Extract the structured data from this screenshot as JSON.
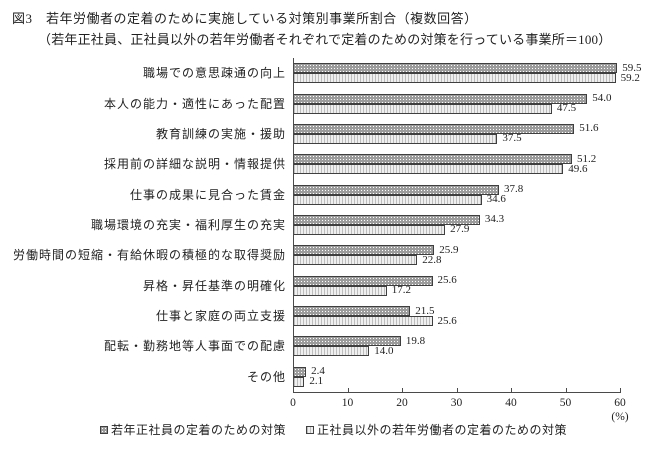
{
  "figure": {
    "title": "図3　若年労働者の定着のために実施している対策別事業所割合（複数回答）",
    "subtitle": "（若年正社員、正社員以外の若年労働者それぞれで定着のための対策を行っている事業所＝100）"
  },
  "chart_data": {
    "type": "bar",
    "orientation": "horizontal",
    "title": "若年労働者の定着のために実施している対策別事業所割合（複数回答）",
    "categories": [
      "職場での意思疎通の向上",
      "本人の能力・適性にあった配置",
      "教育訓練の実施・援助",
      "採用前の詳細な説明・情報提供",
      "仕事の成果に見合った賃金",
      "職場環境の充実・福利厚生の充実",
      "労働時間の短縮・有給休暇の積極的な取得奨励",
      "昇格・昇任基準の明確化",
      "仕事と家庭の両立支援",
      "配転・勤務地等人事面での配慮",
      "その他"
    ],
    "series": [
      {
        "name": "若年正社員の定着のための対策",
        "values": [
          59.5,
          54.0,
          51.6,
          51.2,
          37.8,
          34.3,
          25.9,
          25.6,
          21.5,
          19.8,
          2.4
        ],
        "fill": "#9c9c9c",
        "pattern": "white-dots"
      },
      {
        "name": "正社員以外の若年労働者の定着のための対策",
        "values": [
          59.2,
          47.5,
          37.5,
          49.6,
          34.6,
          27.9,
          22.8,
          17.2,
          25.6,
          14.0,
          2.1
        ],
        "fill": "#efefef",
        "pattern": "vertical-stripes"
      }
    ],
    "xlim": [
      0,
      60
    ],
    "xticks": [
      0,
      10,
      20,
      30,
      40,
      50,
      60
    ],
    "x_unit": "(%)",
    "value_labels": true,
    "grid": false,
    "legend_position": "bottom"
  }
}
